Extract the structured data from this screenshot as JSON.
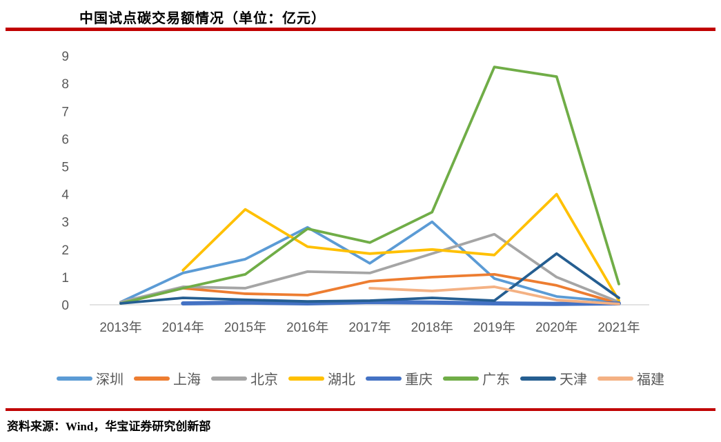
{
  "page": {
    "title": "中国试点碳交易额情况（单位：亿元）",
    "source_note": "资料来源：Wind，华宝证券研究创新部",
    "accent_rule_color": "#C00000"
  },
  "chart_data": {
    "type": "line",
    "title": "中国试点碳交易额情况（单位：亿元）",
    "unit": "亿元",
    "categories": [
      "2013年",
      "2014年",
      "2015年",
      "2016年",
      "2017年",
      "2018年",
      "2019年",
      "2020年",
      "2021年"
    ],
    "ylim": [
      0,
      9
    ],
    "ytick_interval": 1,
    "grid": false,
    "legend_position": "bottom",
    "axis_label_color": "#595959",
    "axis_line_color": "#D9D9D9",
    "series": [
      {
        "id": "shenzhen",
        "name": "深圳",
        "color": "#5B9BD5",
        "values": [
          0.1,
          1.15,
          1.65,
          2.8,
          1.5,
          3.0,
          0.95,
          0.3,
          0.1
        ]
      },
      {
        "id": "shanghai",
        "name": "上海",
        "color": "#ED7D31",
        "values": [
          0.05,
          0.6,
          0.4,
          0.35,
          0.85,
          1.0,
          1.1,
          0.7,
          0.05
        ]
      },
      {
        "id": "beijing",
        "name": "北京",
        "color": "#A5A5A5",
        "values": [
          0.1,
          0.65,
          0.6,
          1.2,
          1.15,
          1.85,
          2.55,
          1.0,
          0.1
        ]
      },
      {
        "id": "hubei",
        "name": "湖北",
        "color": "#FFC000",
        "values": [
          null,
          1.25,
          3.45,
          2.1,
          1.85,
          2.0,
          1.8,
          4.0,
          0.15
        ]
      },
      {
        "id": "chongqing",
        "name": "重庆",
        "color": "#4472C4",
        "width": 6,
        "values": [
          null,
          0.05,
          0.08,
          0.05,
          0.1,
          0.08,
          0.05,
          0.03,
          0.05
        ]
      },
      {
        "id": "guangdong",
        "name": "广东",
        "color": "#70AD47",
        "values": [
          0.05,
          0.6,
          1.1,
          2.75,
          2.25,
          3.35,
          8.6,
          8.25,
          0.75
        ]
      },
      {
        "id": "tianjin",
        "name": "天津",
        "color": "#255E91",
        "values": [
          0.05,
          0.25,
          0.18,
          0.12,
          0.15,
          0.25,
          0.15,
          1.85,
          0.25
        ]
      },
      {
        "id": "fujian",
        "name": "福建",
        "color": "#F4B183",
        "values": [
          null,
          null,
          null,
          null,
          0.6,
          0.5,
          0.65,
          0.17,
          0.03
        ]
      }
    ]
  }
}
